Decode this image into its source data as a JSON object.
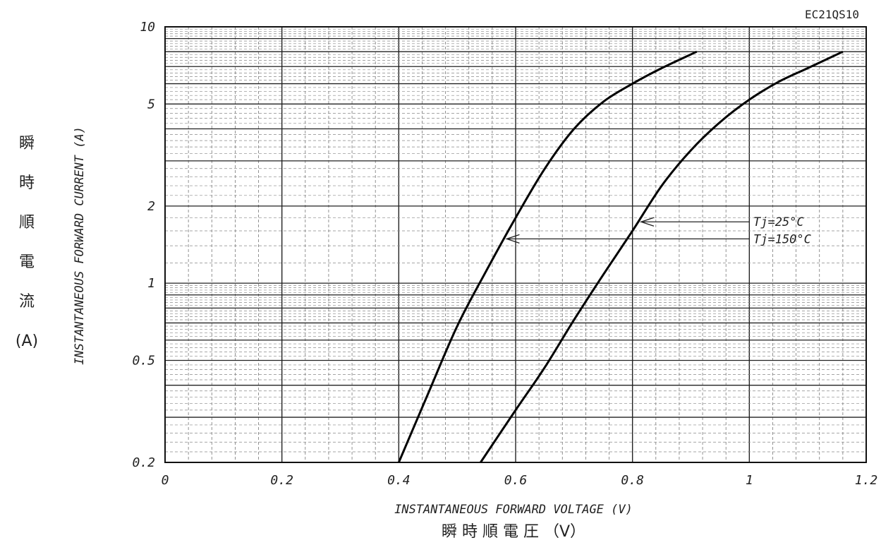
{
  "chart_data": {
    "type": "line",
    "model": "EC21QS10",
    "xlabel": "INSTANTANEOUS FORWARD VOLTAGE (V)",
    "xlabel_jp": "瞬 時 順 電 圧 （V）",
    "ylabel": "INSTANTANEOUS FORWARD CURRENT (A)",
    "ylabel_jp": [
      "瞬",
      "時",
      "順",
      "電",
      "流",
      "(A)"
    ],
    "xlim": [
      0,
      1.2
    ],
    "ylim": [
      0.2,
      10
    ],
    "yscale": "log",
    "grid": true,
    "x_ticks": [
      {
        "value": 0,
        "label": "0"
      },
      {
        "value": 0.2,
        "label": "0.2"
      },
      {
        "value": 0.4,
        "label": "0.4"
      },
      {
        "value": 0.6,
        "label": "0.6"
      },
      {
        "value": 0.8,
        "label": "0.8"
      },
      {
        "value": 1.0,
        "label": "1"
      },
      {
        "value": 1.2,
        "label": "1.2"
      }
    ],
    "y_ticks": [
      {
        "value": 0.2,
        "label": "0.2"
      },
      {
        "value": 0.5,
        "label": "0.5"
      },
      {
        "value": 1,
        "label": "1"
      },
      {
        "value": 2,
        "label": "2"
      },
      {
        "value": 5,
        "label": "5"
      },
      {
        "value": 10,
        "label": "10"
      }
    ],
    "series": [
      {
        "name": "Tj=150°C",
        "points": [
          [
            0.4,
            0.2
          ],
          [
            0.45,
            0.37
          ],
          [
            0.5,
            0.68
          ],
          [
            0.55,
            1.12
          ],
          [
            0.6,
            1.8
          ],
          [
            0.65,
            2.8
          ],
          [
            0.7,
            4.0
          ],
          [
            0.75,
            5.1
          ],
          [
            0.8,
            6.0
          ],
          [
            0.85,
            6.9
          ],
          [
            0.91,
            8.0
          ]
        ]
      },
      {
        "name": "Tj=25°C",
        "points": [
          [
            0.54,
            0.2
          ],
          [
            0.6,
            0.32
          ],
          [
            0.65,
            0.47
          ],
          [
            0.7,
            0.72
          ],
          [
            0.75,
            1.08
          ],
          [
            0.8,
            1.6
          ],
          [
            0.85,
            2.4
          ],
          [
            0.9,
            3.3
          ],
          [
            0.95,
            4.25
          ],
          [
            1.0,
            5.2
          ],
          [
            1.05,
            6.1
          ],
          [
            1.1,
            6.9
          ],
          [
            1.16,
            8.0
          ]
        ]
      }
    ],
    "annotations": [
      {
        "text": "Tj=25°C",
        "series": "Tj=25°C",
        "at_x": 0.81
      },
      {
        "text": "Tj=150°C",
        "series": "Tj=150°C",
        "at_x": 0.58
      }
    ]
  }
}
